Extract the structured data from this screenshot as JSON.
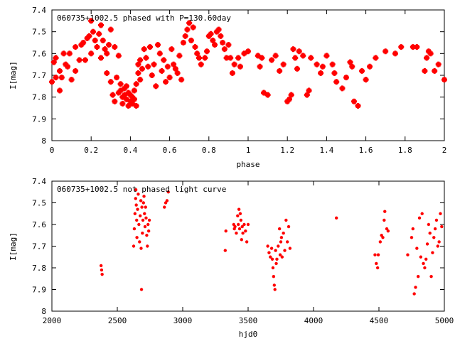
{
  "chart_data": [
    {
      "type": "scatter",
      "title": "060735+1002.5 phased with P=130.60day",
      "xlabel": "phase",
      "ylabel": "I[mag]",
      "xlim": [
        0,
        2
      ],
      "ylim": [
        8,
        7.4
      ],
      "y_inverted": true,
      "xticks": [
        "0",
        "0.2",
        "0.4",
        "0.6",
        "0.8",
        "1",
        "1.2",
        "1.4",
        "1.6",
        "1.8",
        "2"
      ],
      "yticks": [
        "7.4",
        "7.5",
        "7.6",
        "7.7",
        "7.8",
        "7.9",
        "8"
      ],
      "grid": false,
      "marker": "star",
      "color": "#ff0000",
      "points": [
        [
          0.0,
          7.73
        ],
        [
          0.01,
          7.64
        ],
        [
          0.02,
          7.71
        ],
        [
          0.02,
          7.62
        ],
        [
          0.04,
          7.77
        ],
        [
          0.04,
          7.68
        ],
        [
          0.05,
          7.71
        ],
        [
          0.06,
          7.6
        ],
        [
          0.07,
          7.65
        ],
        [
          0.08,
          7.66
        ],
        [
          0.09,
          7.6
        ],
        [
          0.1,
          7.72
        ],
        [
          0.12,
          7.68
        ],
        [
          0.12,
          7.57
        ],
        [
          0.14,
          7.63
        ],
        [
          0.15,
          7.56
        ],
        [
          0.16,
          7.55
        ],
        [
          0.17,
          7.63
        ],
        [
          0.18,
          7.53
        ],
        [
          0.19,
          7.52
        ],
        [
          0.2,
          7.6
        ],
        [
          0.2,
          7.45
        ],
        [
          0.21,
          7.5
        ],
        [
          0.22,
          7.54
        ],
        [
          0.23,
          7.57
        ],
        [
          0.24,
          7.51
        ],
        [
          0.25,
          7.47
        ],
        [
          0.25,
          7.62
        ],
        [
          0.26,
          7.54
        ],
        [
          0.27,
          7.58
        ],
        [
          0.28,
          7.6
        ],
        [
          0.28,
          7.69
        ],
        [
          0.29,
          7.56
        ],
        [
          0.3,
          7.49
        ],
        [
          0.3,
          7.73
        ],
        [
          0.31,
          7.79
        ],
        [
          0.32,
          7.82
        ],
        [
          0.32,
          7.57
        ],
        [
          0.33,
          7.71
        ],
        [
          0.34,
          7.78
        ],
        [
          0.34,
          7.61
        ],
        [
          0.35,
          7.74
        ],
        [
          0.35,
          7.77
        ],
        [
          0.36,
          7.8
        ],
        [
          0.36,
          7.83
        ],
        [
          0.37,
          7.76
        ],
        [
          0.37,
          7.79
        ],
        [
          0.38,
          7.81
        ],
        [
          0.38,
          7.75
        ],
        [
          0.39,
          7.84
        ],
        [
          0.39,
          7.78
        ],
        [
          0.4,
          7.82
        ],
        [
          0.4,
          7.79
        ],
        [
          0.41,
          7.8
        ],
        [
          0.41,
          7.83
        ],
        [
          0.42,
          7.77
        ],
        [
          0.42,
          7.81
        ],
        [
          0.43,
          7.74
        ],
        [
          0.43,
          7.84
        ],
        [
          0.44,
          7.65
        ],
        [
          0.44,
          7.69
        ],
        [
          0.45,
          7.72
        ],
        [
          0.45,
          7.63
        ],
        [
          0.46,
          7.67
        ],
        [
          0.47,
          7.58
        ],
        [
          0.48,
          7.62
        ],
        [
          0.49,
          7.66
        ],
        [
          0.5,
          7.57
        ],
        [
          0.51,
          7.7
        ],
        [
          0.52,
          7.65
        ],
        [
          0.53,
          7.75
        ],
        [
          0.54,
          7.56
        ],
        [
          0.55,
          7.6
        ],
        [
          0.56,
          7.68
        ],
        [
          0.57,
          7.63
        ],
        [
          0.58,
          7.73
        ],
        [
          0.59,
          7.66
        ],
        [
          0.6,
          7.71
        ],
        [
          0.61,
          7.58
        ],
        [
          0.62,
          7.65
        ],
        [
          0.63,
          7.67
        ],
        [
          0.64,
          7.69
        ],
        [
          0.65,
          7.61
        ],
        [
          0.66,
          7.72
        ],
        [
          0.67,
          7.55
        ],
        [
          0.68,
          7.52
        ],
        [
          0.69,
          7.49
        ],
        [
          0.7,
          7.46
        ],
        [
          0.71,
          7.54
        ],
        [
          0.72,
          7.48
        ],
        [
          0.73,
          7.57
        ],
        [
          0.74,
          7.6
        ],
        [
          0.75,
          7.62
        ],
        [
          0.76,
          7.65
        ],
        [
          0.78,
          7.62
        ],
        [
          0.79,
          7.59
        ],
        [
          0.8,
          7.52
        ],
        [
          0.81,
          7.51
        ],
        [
          0.82,
          7.54
        ],
        [
          0.83,
          7.56
        ],
        [
          0.84,
          7.5
        ],
        [
          0.85,
          7.49
        ],
        [
          0.86,
          7.52
        ],
        [
          0.87,
          7.55
        ],
        [
          0.88,
          7.58
        ],
        [
          0.89,
          7.62
        ],
        [
          0.9,
          7.56
        ],
        [
          0.91,
          7.62
        ],
        [
          0.92,
          7.69
        ],
        [
          0.93,
          7.65
        ],
        [
          0.95,
          7.62
        ],
        [
          0.96,
          7.66
        ],
        [
          0.98,
          7.6
        ],
        [
          1.0,
          7.59
        ],
        [
          1.05,
          7.61
        ],
        [
          1.06,
          7.66
        ],
        [
          1.07,
          7.62
        ],
        [
          1.08,
          7.78
        ],
        [
          1.1,
          7.79
        ],
        [
          1.12,
          7.63
        ],
        [
          1.14,
          7.61
        ],
        [
          1.16,
          7.68
        ],
        [
          1.18,
          7.65
        ],
        [
          1.2,
          7.82
        ],
        [
          1.21,
          7.81
        ],
        [
          1.22,
          7.79
        ],
        [
          1.23,
          7.58
        ],
        [
          1.24,
          7.62
        ],
        [
          1.25,
          7.67
        ],
        [
          1.26,
          7.59
        ],
        [
          1.28,
          7.61
        ],
        [
          1.3,
          7.79
        ],
        [
          1.31,
          7.77
        ],
        [
          1.32,
          7.62
        ],
        [
          1.35,
          7.65
        ],
        [
          1.37,
          7.69
        ],
        [
          1.38,
          7.66
        ],
        [
          1.4,
          7.61
        ],
        [
          1.43,
          7.65
        ],
        [
          1.44,
          7.69
        ],
        [
          1.45,
          7.73
        ],
        [
          1.48,
          7.76
        ],
        [
          1.5,
          7.71
        ],
        [
          1.52,
          7.64
        ],
        [
          1.53,
          7.66
        ],
        [
          1.54,
          7.82
        ],
        [
          1.56,
          7.84
        ],
        [
          1.58,
          7.68
        ],
        [
          1.6,
          7.72
        ],
        [
          1.62,
          7.66
        ],
        [
          1.65,
          7.62
        ],
        [
          1.7,
          7.59
        ],
        [
          1.75,
          7.6
        ],
        [
          1.78,
          7.57
        ],
        [
          1.84,
          7.57
        ],
        [
          1.86,
          7.57
        ],
        [
          1.9,
          7.68
        ],
        [
          1.91,
          7.62
        ],
        [
          1.92,
          7.59
        ],
        [
          1.93,
          7.6
        ],
        [
          1.95,
          7.68
        ],
        [
          1.97,
          7.65
        ],
        [
          2.0,
          7.72
        ]
      ]
    },
    {
      "type": "scatter",
      "title": "060735+1002.5 not phased light curve",
      "xlabel": "hjd0",
      "ylabel": "I[mag]",
      "xlim": [
        2000,
        5000
      ],
      "ylim": [
        8,
        7.4
      ],
      "y_inverted": true,
      "xticks": [
        "2000",
        "2500",
        "3000",
        "3500",
        "4000",
        "4500",
        "5000"
      ],
      "yticks": [
        "7.4",
        "7.5",
        "7.6",
        "7.7",
        "7.8",
        "7.9",
        "8"
      ],
      "grid": false,
      "marker": "dot",
      "color": "#ff0000",
      "points": [
        [
          2376,
          7.79
        ],
        [
          2380,
          7.81
        ],
        [
          2384,
          7.83
        ],
        [
          2625,
          7.7
        ],
        [
          2630,
          7.62
        ],
        [
          2635,
          7.55
        ],
        [
          2640,
          7.48
        ],
        [
          2642,
          7.44
        ],
        [
          2645,
          7.51
        ],
        [
          2648,
          7.58
        ],
        [
          2650,
          7.66
        ],
        [
          2655,
          7.53
        ],
        [
          2660,
          7.46
        ],
        [
          2665,
          7.6
        ],
        [
          2670,
          7.68
        ],
        [
          2675,
          7.56
        ],
        [
          2680,
          7.49
        ],
        [
          2682,
          7.71
        ],
        [
          2685,
          7.9
        ],
        [
          2688,
          7.52
        ],
        [
          2692,
          7.64
        ],
        [
          2696,
          7.58
        ],
        [
          2700,
          7.5
        ],
        [
          2704,
          7.47
        ],
        [
          2708,
          7.55
        ],
        [
          2712,
          7.61
        ],
        [
          2716,
          7.52
        ],
        [
          2720,
          7.57
        ],
        [
          2725,
          7.65
        ],
        [
          2730,
          7.7
        ],
        [
          2735,
          7.6
        ],
        [
          2740,
          7.63
        ],
        [
          2745,
          7.58
        ],
        [
          2860,
          7.52
        ],
        [
          2870,
          7.5
        ],
        [
          2880,
          7.49
        ],
        [
          2890,
          7.45
        ],
        [
          3325,
          7.72
        ],
        [
          3330,
          7.63
        ],
        [
          3390,
          7.6
        ],
        [
          3395,
          7.62
        ],
        [
          3400,
          7.61
        ],
        [
          3410,
          7.64
        ],
        [
          3420,
          7.56
        ],
        [
          3425,
          7.6
        ],
        [
          3430,
          7.53
        ],
        [
          3435,
          7.62
        ],
        [
          3440,
          7.55
        ],
        [
          3445,
          7.58
        ],
        [
          3450,
          7.67
        ],
        [
          3455,
          7.61
        ],
        [
          3460,
          7.64
        ],
        [
          3470,
          7.6
        ],
        [
          3480,
          7.63
        ],
        [
          3490,
          7.68
        ],
        [
          3500,
          7.6
        ],
        [
          3650,
          7.7
        ],
        [
          3660,
          7.73
        ],
        [
          3670,
          7.75
        ],
        [
          3680,
          7.71
        ],
        [
          3685,
          7.76
        ],
        [
          3690,
          7.8
        ],
        [
          3695,
          7.84
        ],
        [
          3700,
          7.88
        ],
        [
          3705,
          7.9
        ],
        [
          3710,
          7.72
        ],
        [
          3715,
          7.78
        ],
        [
          3720,
          7.76
        ],
        [
          3730,
          7.7
        ],
        [
          3740,
          7.62
        ],
        [
          3745,
          7.74
        ],
        [
          3750,
          7.68
        ],
        [
          3755,
          7.66
        ],
        [
          3760,
          7.75
        ],
        [
          3770,
          7.64
        ],
        [
          3780,
          7.72
        ],
        [
          3790,
          7.58
        ],
        [
          3800,
          7.68
        ],
        [
          3810,
          7.61
        ],
        [
          3820,
          7.71
        ],
        [
          4175,
          7.57
        ],
        [
          4470,
          7.74
        ],
        [
          4480,
          7.78
        ],
        [
          4490,
          7.8
        ],
        [
          4495,
          7.74
        ],
        [
          4510,
          7.68
        ],
        [
          4520,
          7.65
        ],
        [
          4530,
          7.66
        ],
        [
          4540,
          7.58
        ],
        [
          4545,
          7.54
        ],
        [
          4560,
          7.62
        ],
        [
          4570,
          7.63
        ],
        [
          4720,
          7.74
        ],
        [
          4750,
          7.66
        ],
        [
          4760,
          7.62
        ],
        [
          4770,
          7.92
        ],
        [
          4780,
          7.89
        ],
        [
          4790,
          7.71
        ],
        [
          4800,
          7.84
        ],
        [
          4810,
          7.57
        ],
        [
          4820,
          7.75
        ],
        [
          4830,
          7.55
        ],
        [
          4840,
          7.78
        ],
        [
          4850,
          7.8
        ],
        [
          4860,
          7.76
        ],
        [
          4870,
          7.69
        ],
        [
          4880,
          7.6
        ],
        [
          4890,
          7.64
        ],
        [
          4900,
          7.84
        ],
        [
          4910,
          7.73
        ],
        [
          4920,
          7.66
        ],
        [
          4930,
          7.62
        ],
        [
          4940,
          7.58
        ],
        [
          4950,
          7.7
        ],
        [
          4960,
          7.68
        ],
        [
          4970,
          7.55
        ],
        [
          4980,
          7.61
        ]
      ]
    }
  ]
}
